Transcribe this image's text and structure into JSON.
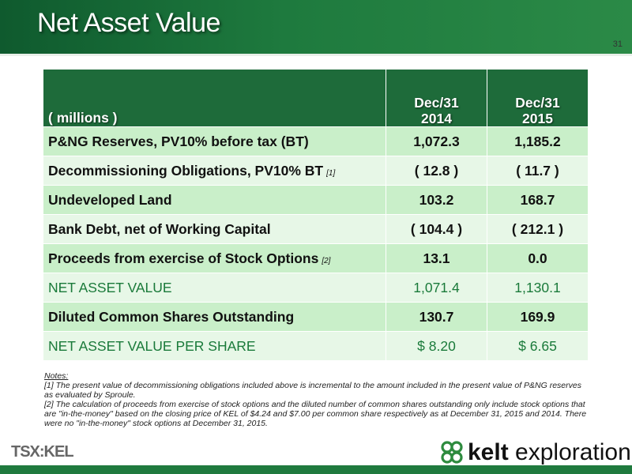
{
  "header": {
    "title": "Net Asset Value",
    "page_number": "31"
  },
  "table": {
    "header_label": "( millions )",
    "columns": [
      {
        "line1": "Dec/31",
        "line2": "2014"
      },
      {
        "line1": "Dec/31",
        "line2": "2015"
      }
    ],
    "rows": [
      {
        "label": "P&NG Reserves, PV10% before tax (BT)",
        "note": "",
        "v1": "1,072.3",
        "v2": "1,185.2"
      },
      {
        "label": "Decommissioning Obligations, PV10% BT",
        "note": "[1]",
        "v1": "( 12.8 )",
        "v2": "( 11.7 )"
      },
      {
        "label": "Undeveloped Land",
        "note": "",
        "v1": "103.2",
        "v2": "168.7"
      },
      {
        "label": "Bank Debt, net of Working Capital",
        "note": "",
        "v1": "( 104.4 )",
        "v2": "( 212.1 )"
      },
      {
        "label": "Proceeds from exercise of Stock Options",
        "note": "[2]",
        "v1": "13.1",
        "v2": "0.0"
      },
      {
        "label": "NET ASSET VALUE",
        "note": "",
        "v1": "1,071.4",
        "v2": "1,130.1"
      },
      {
        "label": "Diluted Common Shares Outstanding",
        "note": "",
        "v1": "130.7",
        "v2": "169.9"
      },
      {
        "label": "NET ASSET VALUE PER SHARE",
        "note": "",
        "v1": "$ 8.20",
        "v2": "$ 6.65"
      }
    ]
  },
  "notes": {
    "heading": "Notes:",
    "note1": "[1] The present value of decommissioning obligations included above is incremental to the amount included in the present value of P&NG reserves as evaluated by Sproule.",
    "note2": "[2] The calculation of proceeds from exercise of stock options and the diluted number of common shares outstanding only include stock options that are \"in-the-money\" based on the closing price of KEL of $4.24 and $7.00 per common share respectively as at December 31, 2015 and 2014. There were no \"in-the-money\" stock options at December 31, 2015."
  },
  "footer": {
    "ticker": "TSX:KEL",
    "brand_bold": "kelt",
    "brand_rest": " exploration"
  },
  "colors": {
    "header_green": "#1e7a3e",
    "table_header": "#1e6b3a",
    "row_dark": "#c9efc9",
    "row_light": "#e7f7e7",
    "nav_text": "#1a7a3a"
  }
}
